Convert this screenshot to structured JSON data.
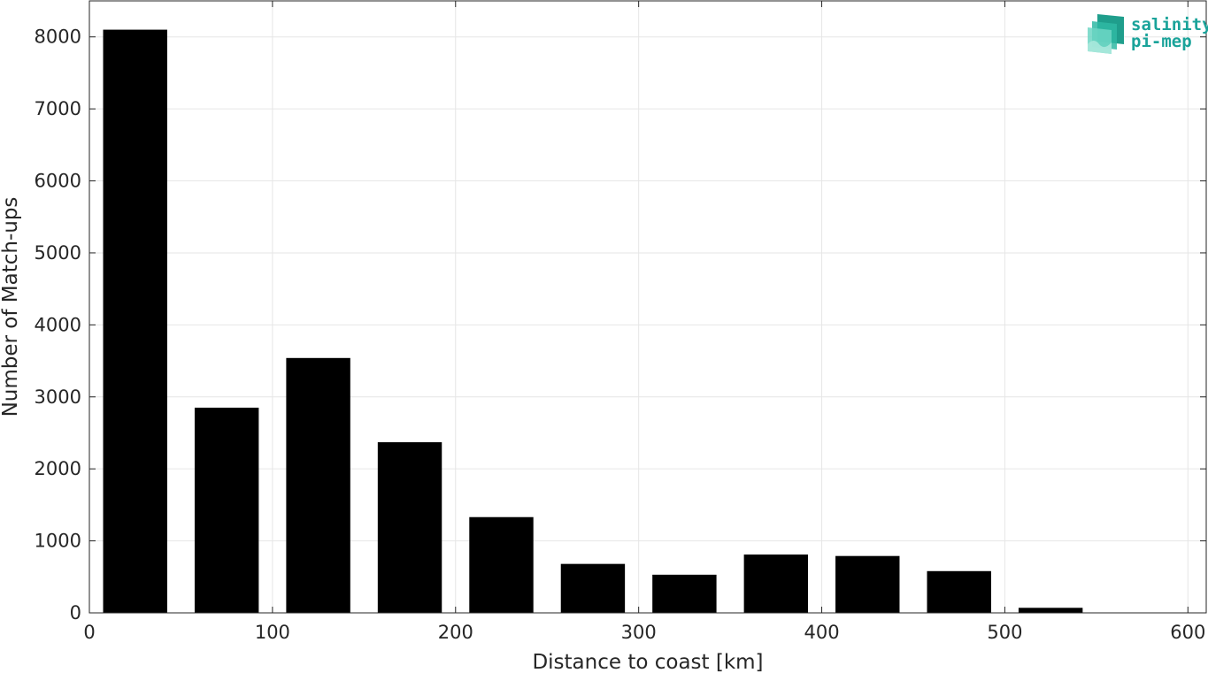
{
  "chart_data": {
    "type": "bar",
    "title": "",
    "xlabel": "Distance to coast [km]",
    "ylabel": "Number of Match-ups",
    "xlim": [
      0,
      610
    ],
    "ylim": [
      0,
      8500
    ],
    "xticks": [
      0,
      100,
      200,
      300,
      400,
      500,
      600
    ],
    "yticks": [
      0,
      1000,
      2000,
      3000,
      4000,
      5000,
      6000,
      7000,
      8000
    ],
    "grid": true,
    "bin_width": 50,
    "bar_width": 35,
    "x": [
      25,
      75,
      125,
      175,
      225,
      275,
      325,
      375,
      425,
      475,
      525,
      575
    ],
    "values": [
      8100,
      2850,
      3540,
      2370,
      1330,
      680,
      530,
      810,
      790,
      580,
      70,
      0
    ],
    "bar_color": "#000000"
  },
  "logo": {
    "line1": "salinity",
    "line2": "pi-mep",
    "color": "#1aa39a"
  }
}
